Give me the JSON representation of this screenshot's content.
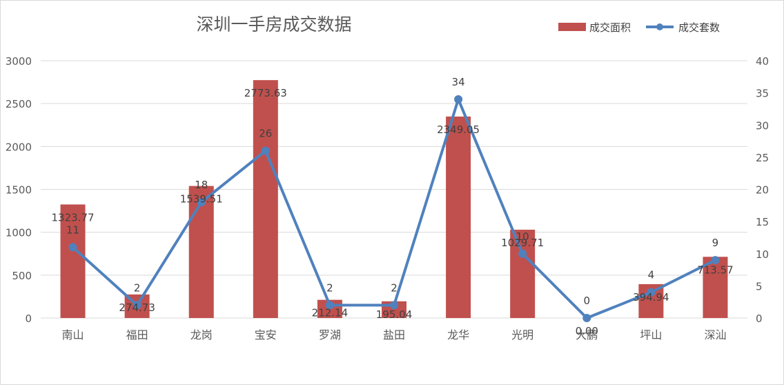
{
  "chart_data": {
    "type": "bar",
    "title": "深圳一手房成交数据",
    "categories": [
      "南山",
      "福田",
      "龙岗",
      "宝安",
      "罗湖",
      "盐田",
      "龙华",
      "光明",
      "大鹏",
      "坪山",
      "深汕"
    ],
    "series": [
      {
        "name": "成交面积",
        "type": "bar",
        "axis": "left",
        "color": "#c0504d",
        "values": [
          1323.77,
          274.73,
          1539.51,
          2773.63,
          212.14,
          195.04,
          2349.05,
          1029.71,
          0.0,
          394.94,
          713.57
        ],
        "labels": [
          "1323.77",
          "274.73",
          "1539.51",
          "2773.63",
          "212.14",
          "195.04",
          "2349.05",
          "1029.71",
          "0.00",
          "394.94",
          "713.57"
        ]
      },
      {
        "name": "成交套数",
        "type": "line",
        "axis": "right",
        "color": "#4f81bd",
        "values": [
          11,
          2,
          18,
          26,
          2,
          2,
          34,
          10,
          0,
          4,
          9
        ],
        "labels": [
          "11",
          "2",
          "18",
          "26",
          "2",
          "2",
          "34",
          "10",
          "0",
          "4",
          "9"
        ]
      }
    ],
    "y_left": {
      "min": 0,
      "max": 3000,
      "ticks": [
        "0",
        "500",
        "1000",
        "1500",
        "2000",
        "2500",
        "3000"
      ]
    },
    "y_right": {
      "min": 0,
      "max": 40,
      "ticks": [
        "0",
        "5",
        "10",
        "15",
        "20",
        "25",
        "30",
        "35",
        "40"
      ]
    },
    "grid": true,
    "legend": "top-right"
  }
}
